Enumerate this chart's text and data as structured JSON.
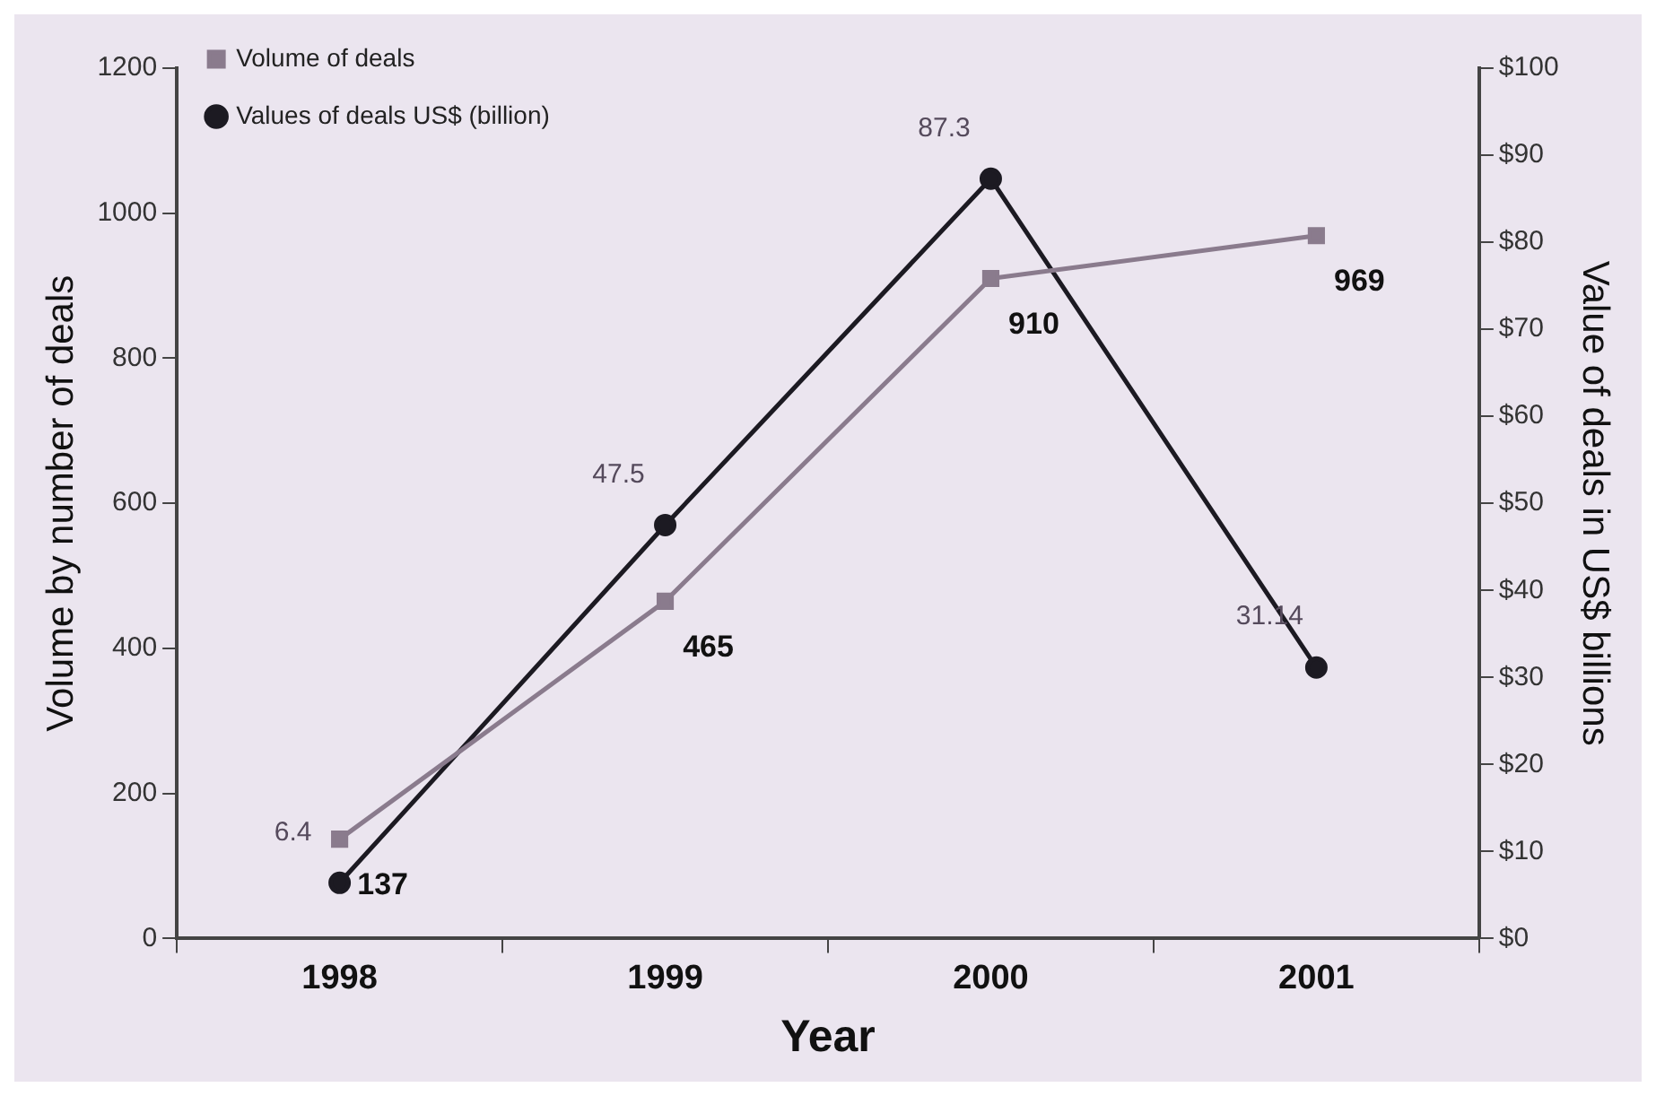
{
  "chart_data": {
    "type": "line",
    "xlabel": "Year",
    "ylabel": "Volume by number of deals",
    "y2label": "Value of deals in US$ billions",
    "categories": [
      "1998",
      "1999",
      "2000",
      "2001"
    ],
    "series": [
      {
        "name": "Volume of deals",
        "color": "#8a7b8d",
        "values": [
          137,
          465,
          910,
          969
        ],
        "marker": "square"
      },
      {
        "name": "Values of deals US$ (billion)",
        "color": "#1c1a22",
        "values": [
          6.4,
          47.5,
          87.3,
          31.14
        ],
        "axis": "y2",
        "marker": "circle"
      }
    ],
    "ylim": [
      0,
      1200
    ],
    "yticks": [
      0,
      200,
      400,
      600,
      800,
      1000,
      1200
    ],
    "y2lim": [
      0,
      100
    ],
    "y2ticks": [
      {
        "value": 0,
        "label": "$0"
      },
      {
        "value": 10,
        "label": "$10"
      },
      {
        "value": 20,
        "label": "$20"
      },
      {
        "value": 30,
        "label": "$30"
      },
      {
        "value": 40,
        "label": "$40"
      },
      {
        "value": 50,
        "label": "$50"
      },
      {
        "value": 60,
        "label": "$60"
      },
      {
        "value": 70,
        "label": "$70"
      },
      {
        "value": 80,
        "label": "$80"
      },
      {
        "value": 90,
        "label": "$90"
      },
      {
        "value": 100,
        "label": "$100"
      }
    ],
    "data_labels": true,
    "grid": false,
    "legend": "top left",
    "line_style": "solid"
  }
}
